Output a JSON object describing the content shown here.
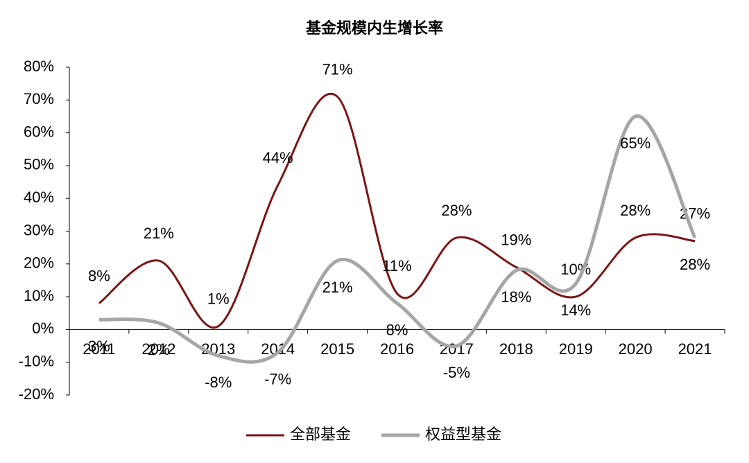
{
  "chart_data": {
    "type": "line",
    "title": "基金规模内生增长率",
    "categories": [
      "2011",
      "2012",
      "2013",
      "2014",
      "2015",
      "2016",
      "2017",
      "2018",
      "2019",
      "2020",
      "2021"
    ],
    "series": [
      {
        "name": "全部基金",
        "color": "#7b1416",
        "values": [
          8,
          21,
          1,
          44,
          71,
          11,
          28,
          19,
          10,
          28,
          27
        ],
        "value_labels": [
          "8%",
          "21%",
          "1%",
          "44%",
          "71%",
          "11%",
          "28%",
          "19%",
          "10%",
          "28%",
          "27%"
        ]
      },
      {
        "name": "权益型基金",
        "color": "#a6a6a6",
        "values": [
          3,
          2,
          -8,
          -7,
          21,
          8,
          -5,
          18,
          14,
          65,
          28
        ],
        "value_labels": [
          "3%",
          "2%",
          "-8%",
          "-7%",
          "21%",
          "8%",
          "-5%",
          "18%",
          "14%",
          "65%",
          "28%"
        ]
      }
    ],
    "ylim": [
      -20,
      80
    ],
    "yticks": [
      {
        "value": -20,
        "label": "-20%"
      },
      {
        "value": -10,
        "label": "-10%"
      },
      {
        "value": 0,
        "label": "0%"
      },
      {
        "value": 10,
        "label": "10%"
      },
      {
        "value": 20,
        "label": "20%"
      },
      {
        "value": 30,
        "label": "30%"
      },
      {
        "value": 40,
        "label": "40%"
      },
      {
        "value": 50,
        "label": "50%"
      },
      {
        "value": 60,
        "label": "60%"
      },
      {
        "value": 70,
        "label": "70%"
      },
      {
        "value": 80,
        "label": "80%"
      }
    ],
    "grid": false
  }
}
